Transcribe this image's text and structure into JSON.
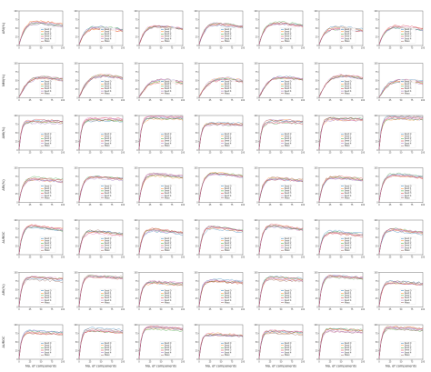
{
  "chart_data": {
    "type": "line",
    "layout": {
      "rows": 7,
      "cols": 7
    },
    "row_ylabels": [
      "ARI(%)",
      "NMI(%)",
      "AMI(%)",
      "ARI(%)",
      "AUROC",
      "ARI(%)",
      "AUROC"
    ],
    "xlabel": "No. of components",
    "xlim": [
      0,
      100
    ],
    "x_ticks": [
      "0",
      "25",
      "50",
      "75",
      "100"
    ],
    "legend_entries": [
      "Seed 0",
      "Seed 1",
      "Seed 2",
      "Seed 3",
      "Seed 4",
      "Mean"
    ],
    "series_colors": [
      "#1f77b4",
      "#ff7f0e",
      "#2ca02c",
      "#d62728",
      "#9467bd",
      "#8c564b",
      "#e377c2"
    ],
    "row_shapes": [
      {
        "ylim": [
          0,
          100
        ],
        "y_ticks": [
          "0",
          "25",
          "50",
          "75",
          "100"
        ],
        "peak": 0.72,
        "rise": 0.12,
        "decay": 0.25
      },
      {
        "ylim": [
          0,
          100
        ],
        "y_ticks": [
          "0",
          "25",
          "50",
          "75",
          "100"
        ],
        "peak": 0.78,
        "rise": 0.22,
        "decay": 0.35
      },
      {
        "ylim": [
          0,
          100
        ],
        "y_ticks": [
          "0",
          "25",
          "50",
          "75",
          "100"
        ],
        "peak": 0.95,
        "rise": 0.05,
        "decay": 0.03
      },
      {
        "ylim": [
          0,
          100
        ],
        "y_ticks": [
          "0",
          "25",
          "50",
          "75",
          "100"
        ],
        "peak": 0.88,
        "rise": 0.08,
        "decay": 0.15
      },
      {
        "ylim": [
          0,
          100
        ],
        "y_ticks": [
          "0",
          "25",
          "50",
          "75",
          "100"
        ],
        "peak": 0.85,
        "rise": 0.07,
        "decay": 0.2
      },
      {
        "ylim": [
          0,
          100
        ],
        "y_ticks": [
          "0",
          "25",
          "50",
          "75",
          "100"
        ],
        "peak": 0.9,
        "rise": 0.06,
        "decay": 0.1
      },
      {
        "ylim": [
          0,
          100
        ],
        "y_ticks": [
          "0",
          "25",
          "50",
          "75",
          "100"
        ],
        "peak": 0.92,
        "rise": 0.05,
        "decay": 0.08
      }
    ]
  }
}
